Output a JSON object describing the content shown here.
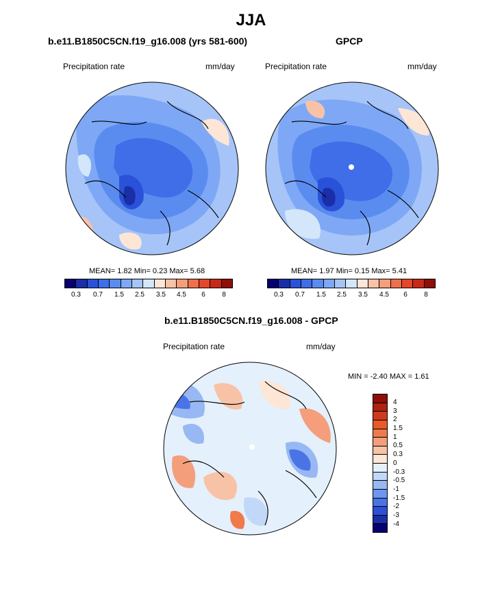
{
  "title": "JJA",
  "panels": {
    "model": {
      "title": "b.e11.B1850C5CN.f19_g16.008 (yrs 581-600)",
      "variable": "Precipitation rate",
      "units": "mm/day",
      "stats": "MEAN=   1.82  Min=   0.23  Max=   5.68"
    },
    "obs": {
      "title": "GPCP",
      "variable": "Precipitation rate",
      "units": "mm/day",
      "stats": "MEAN=   1.97  Min=   0.15  Max=   5.41"
    },
    "diff": {
      "title": "b.e11.B1850C5CN.f19_g16.008 - GPCP",
      "variable": "Precipitation rate",
      "units": "mm/day",
      "stats": "MIN =  -2.40 MAX =   1.61"
    }
  },
  "colorbar_abs": {
    "colors": [
      "#08006e",
      "#1a2ea8",
      "#2a52d8",
      "#3f6ee8",
      "#5a8cf0",
      "#7ea8f5",
      "#a6c4f8",
      "#d4e6fa",
      "#fde6d6",
      "#f8c2a6",
      "#f49e7c",
      "#ee6f4c",
      "#e4472a",
      "#c82818",
      "#8e0e08"
    ],
    "labels": [
      "0.3",
      "0.7",
      "1.5",
      "2.5",
      "3.5",
      "4.5",
      "6",
      "8"
    ]
  },
  "colorbar_diff": {
    "colors": [
      "#8e0e08",
      "#b02210",
      "#cf3a1c",
      "#e85a2a",
      "#f07a4c",
      "#f49e7c",
      "#f8c2a6",
      "#fde6d6",
      "#e4f0fb",
      "#c2d8f8",
      "#98b8f4",
      "#6e96ee",
      "#4a74e6",
      "#2c50d6",
      "#1a2ea8",
      "#08006e"
    ],
    "labels": [
      "4",
      "3",
      "2",
      "1.5",
      "1",
      "0.5",
      "0.3",
      "0",
      "-0.3",
      "-0.5",
      "-1",
      "-1.5",
      "-2",
      "-3",
      "-4"
    ]
  }
}
